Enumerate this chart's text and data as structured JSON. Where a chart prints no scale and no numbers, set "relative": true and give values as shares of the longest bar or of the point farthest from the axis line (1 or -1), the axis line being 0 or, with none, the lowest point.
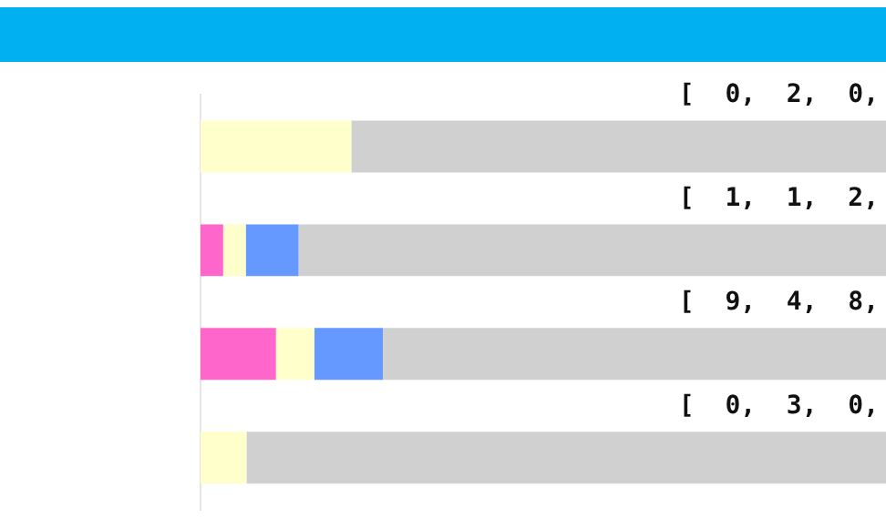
{
  "chart_data": {
    "type": "bar",
    "orientation": "horizontal",
    "stacked": true,
    "relative": true,
    "legend": false,
    "categories": [
      null,
      null,
      null,
      null
    ],
    "series": [
      {
        "color": "#ff66cc",
        "values": [
          0,
          0.033,
          0.11,
          0
        ]
      },
      {
        "color": "#ffffcc",
        "values": [
          0.22,
          0.033,
          0.056,
          0.067
        ]
      },
      {
        "color": "#6699ff",
        "values": [
          0,
          0.077,
          0.1,
          0
        ]
      },
      {
        "color": "#d0d0d0",
        "values": [
          0.78,
          0.857,
          0.734,
          0.933
        ]
      }
    ],
    "annotations": [
      "[ 0, 2, 0,",
      "[ 1, 1, 2,",
      "[ 9, 4, 8,",
      "[ 0, 3, 0,"
    ]
  }
}
